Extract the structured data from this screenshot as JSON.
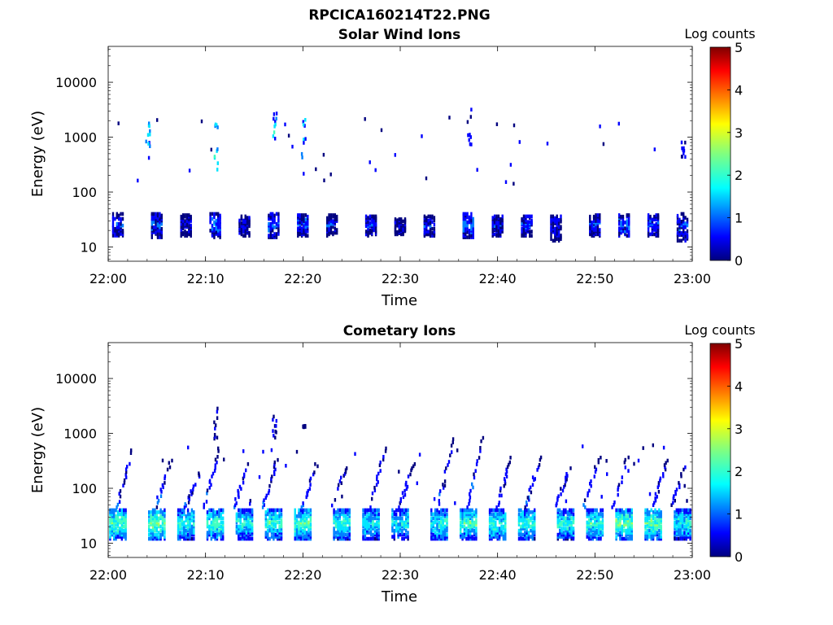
{
  "figure": {
    "title": "RPCICA160214T22.PNG"
  },
  "palette": [
    "#00007f",
    "#0000ff",
    "#0080ff",
    "#00e5ff",
    "#40ffbf",
    "#9fff60",
    "#ffff00",
    "#ff9f00",
    "#ff2000",
    "#7f0000"
  ],
  "chart_data": [
    {
      "type": "heatmap",
      "title": "Solar Wind Ions",
      "xlabel": "Time",
      "ylabel": "Energy (eV)",
      "xlim": [
        "22:00",
        "23:00"
      ],
      "x_ticks": [
        "22:00",
        "22:10",
        "22:20",
        "22:30",
        "22:40",
        "22:50",
        "23:00"
      ],
      "y_scale": "log",
      "ylim": [
        5.5,
        45000
      ],
      "y_ticks": [
        10,
        100,
        1000,
        10000
      ],
      "y_tick_labels": [
        "10",
        "100",
        "1000",
        "10000"
      ],
      "colorbar": {
        "label": "Log counts",
        "range": [
          0,
          5
        ],
        "ticks": [
          "0",
          "1",
          "2",
          "3",
          "4",
          "5"
        ]
      },
      "bursts": [
        {
          "t": "22:01",
          "e_min": 15,
          "e_max": 40,
          "peak": 1.2
        },
        {
          "t": "22:05",
          "e_min": 15,
          "e_max": 40,
          "peak": 1.4
        },
        {
          "t": "22:08",
          "e_min": 16,
          "e_max": 38,
          "peak": 1.1
        },
        {
          "t": "22:11",
          "e_min": 15,
          "e_max": 40,
          "peak": 1.6
        },
        {
          "t": "22:14",
          "e_min": 16,
          "e_max": 36,
          "peak": 1.0
        },
        {
          "t": "22:17",
          "e_min": 15,
          "e_max": 40,
          "peak": 1.5
        },
        {
          "t": "22:20",
          "e_min": 16,
          "e_max": 38,
          "peak": 1.3
        },
        {
          "t": "22:23",
          "e_min": 16,
          "e_max": 38,
          "peak": 1.1
        },
        {
          "t": "22:27",
          "e_min": 16,
          "e_max": 36,
          "peak": 1.2
        },
        {
          "t": "22:30",
          "e_min": 17,
          "e_max": 32,
          "peak": 0.9
        },
        {
          "t": "22:33",
          "e_min": 16,
          "e_max": 36,
          "peak": 1.2
        },
        {
          "t": "22:37",
          "e_min": 15,
          "e_max": 40,
          "peak": 1.6
        },
        {
          "t": "22:40",
          "e_min": 16,
          "e_max": 36,
          "peak": 1.2
        },
        {
          "t": "22:43",
          "e_min": 16,
          "e_max": 36,
          "peak": 1.3
        },
        {
          "t": "22:46",
          "e_min": 13,
          "e_max": 36,
          "peak": 1.1
        },
        {
          "t": "22:50",
          "e_min": 16,
          "e_max": 38,
          "peak": 1.2
        },
        {
          "t": "22:53",
          "e_min": 16,
          "e_max": 38,
          "peak": 1.5
        },
        {
          "t": "22:56",
          "e_min": 16,
          "e_max": 38,
          "peak": 1.3
        },
        {
          "t": "22:59",
          "e_min": 13,
          "e_max": 40,
          "peak": 1.2
        }
      ],
      "sparse_high_energy": [
        {
          "t": "22:04",
          "e_min": 350,
          "e_max": 2600,
          "peak": 1.8
        },
        {
          "t": "22:11",
          "e_min": 250,
          "e_max": 2700,
          "peak": 2.3
        },
        {
          "t": "22:17",
          "e_min": 800,
          "e_max": 2700,
          "peak": 2.2
        },
        {
          "t": "22:20",
          "e_min": 180,
          "e_max": 2800,
          "peak": 1.6
        },
        {
          "t": "22:37",
          "e_min": 500,
          "e_max": 3500,
          "peak": 0.9
        },
        {
          "t": "22:59",
          "e_min": 400,
          "e_max": 900,
          "peak": 0.8
        }
      ]
    },
    {
      "type": "heatmap",
      "title": "Cometary Ions",
      "xlabel": "Time",
      "ylabel": "Energy (eV)",
      "xlim": [
        "22:00",
        "23:00"
      ],
      "x_ticks": [
        "22:00",
        "22:10",
        "22:20",
        "22:30",
        "22:40",
        "22:50",
        "23:00"
      ],
      "y_scale": "log",
      "ylim": [
        5.5,
        45000
      ],
      "y_ticks": [
        10,
        100,
        1000,
        10000
      ],
      "y_tick_labels": [
        "10",
        "100",
        "1000",
        "10000"
      ],
      "colorbar": {
        "label": "Log counts",
        "range": [
          0,
          5
        ],
        "ticks": [
          "0",
          "1",
          "2",
          "3",
          "4",
          "5"
        ]
      },
      "bursts": [
        {
          "t": "22:01",
          "e_min": 12,
          "e_max": 40,
          "peak": 2.8
        },
        {
          "t": "22:05",
          "e_min": 12,
          "e_max": 40,
          "peak": 2.9
        },
        {
          "t": "22:08",
          "e_min": 12,
          "e_max": 40,
          "peak": 2.5
        },
        {
          "t": "22:11",
          "e_min": 12,
          "e_max": 40,
          "peak": 2.7
        },
        {
          "t": "22:14",
          "e_min": 12,
          "e_max": 40,
          "peak": 2.4
        },
        {
          "t": "22:17",
          "e_min": 12,
          "e_max": 40,
          "peak": 2.6
        },
        {
          "t": "22:20",
          "e_min": 12,
          "e_max": 40,
          "peak": 2.8
        },
        {
          "t": "22:24",
          "e_min": 12,
          "e_max": 40,
          "peak": 2.5
        },
        {
          "t": "22:27",
          "e_min": 12,
          "e_max": 40,
          "peak": 2.4
        },
        {
          "t": "22:30",
          "e_min": 12,
          "e_max": 40,
          "peak": 2.3
        },
        {
          "t": "22:34",
          "e_min": 12,
          "e_max": 40,
          "peak": 2.5
        },
        {
          "t": "22:37",
          "e_min": 12,
          "e_max": 40,
          "peak": 2.7
        },
        {
          "t": "22:40",
          "e_min": 12,
          "e_max": 40,
          "peak": 2.6
        },
        {
          "t": "22:43",
          "e_min": 12,
          "e_max": 40,
          "peak": 2.5
        },
        {
          "t": "22:47",
          "e_min": 12,
          "e_max": 40,
          "peak": 2.5
        },
        {
          "t": "22:50",
          "e_min": 12,
          "e_max": 40,
          "peak": 2.6
        },
        {
          "t": "22:53",
          "e_min": 12,
          "e_max": 40,
          "peak": 2.9
        },
        {
          "t": "22:56",
          "e_min": 12,
          "e_max": 40,
          "peak": 2.8
        },
        {
          "t": "22:59",
          "e_min": 12,
          "e_max": 40,
          "peak": 2.4
        }
      ],
      "tails": [
        {
          "t": "22:02",
          "e_top": 550
        },
        {
          "t": "22:06",
          "e_top": 350
        },
        {
          "t": "22:09",
          "e_top": 200
        },
        {
          "t": "22:11",
          "e_top": 600
        },
        {
          "t": "22:14",
          "e_top": 300
        },
        {
          "t": "22:17",
          "e_top": 400
        },
        {
          "t": "22:21",
          "e_top": 300
        },
        {
          "t": "22:24",
          "e_top": 250
        },
        {
          "t": "22:28",
          "e_top": 600
        },
        {
          "t": "22:31",
          "e_top": 300
        },
        {
          "t": "22:35",
          "e_top": 900
        },
        {
          "t": "22:38",
          "e_top": 950
        },
        {
          "t": "22:41",
          "e_top": 400
        },
        {
          "t": "22:44",
          "e_top": 450
        },
        {
          "t": "22:47",
          "e_top": 250
        },
        {
          "t": "22:50",
          "e_top": 400
        },
        {
          "t": "22:53",
          "e_top": 450
        },
        {
          "t": "22:57",
          "e_top": 350
        },
        {
          "t": "22:59",
          "e_top": 350
        }
      ],
      "sparse_high_energy": [
        {
          "t": "22:11",
          "e_min": 700,
          "e_max": 3000,
          "peak": 0.6
        },
        {
          "t": "22:17",
          "e_min": 800,
          "e_max": 2400,
          "peak": 0.6
        },
        {
          "t": "22:20",
          "e_min": 1300,
          "e_max": 1400,
          "peak": 0.6
        }
      ]
    }
  ]
}
